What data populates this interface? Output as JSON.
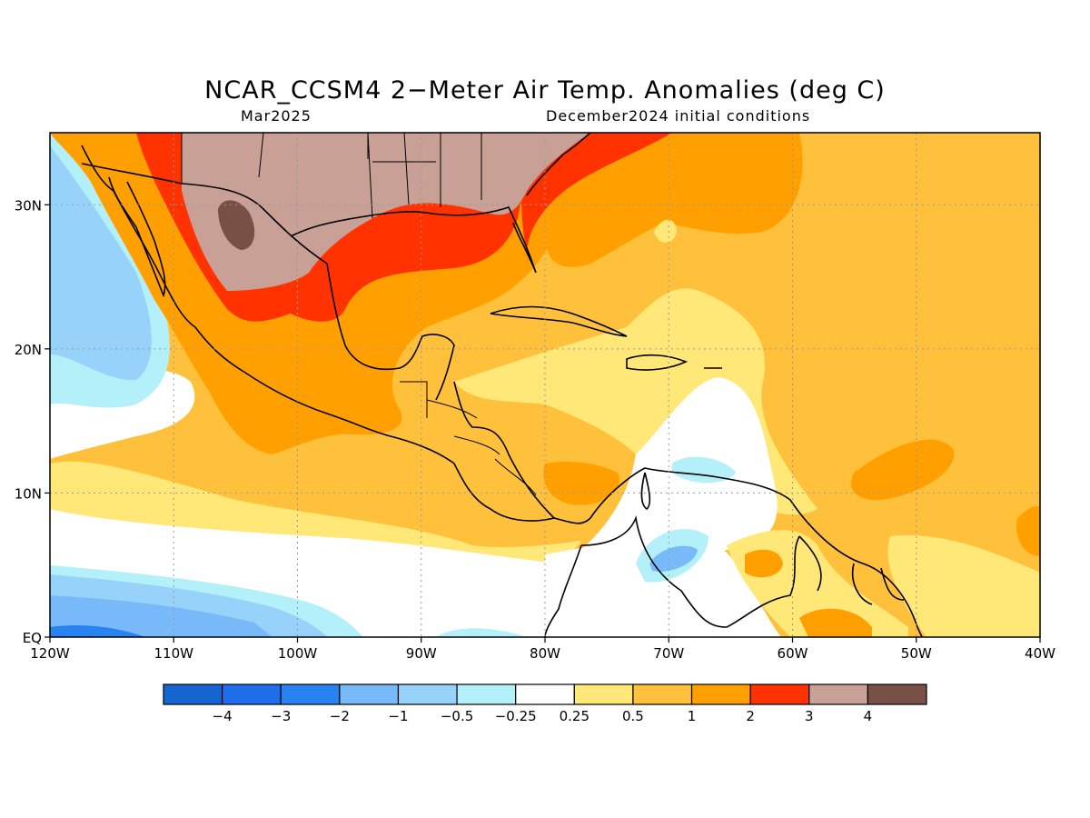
{
  "title": "NCAR_CCSM4 2−Meter Air Temp. Anomalies (deg C)",
  "subtitle_left": "Mar2025",
  "subtitle_right": "December2024 initial conditions",
  "map": {
    "lon_range": [
      -120,
      -40
    ],
    "lat_range": [
      0,
      35
    ],
    "lon_ticks": [
      {
        "v": -120,
        "label": "120W"
      },
      {
        "v": -110,
        "label": "110W"
      },
      {
        "v": -100,
        "label": "100W"
      },
      {
        "v": -90,
        "label": "90W"
      },
      {
        "v": -80,
        "label": "80W"
      },
      {
        "v": -70,
        "label": "70W"
      },
      {
        "v": -60,
        "label": "60W"
      },
      {
        "v": -50,
        "label": "50W"
      },
      {
        "v": -40,
        "label": "40W"
      }
    ],
    "lat_ticks": [
      {
        "v": 0,
        "label": "EQ"
      },
      {
        "v": 10,
        "label": "10N"
      },
      {
        "v": 20,
        "label": "20N"
      },
      {
        "v": 30,
        "label": "30N"
      }
    ],
    "grid": "dotted"
  },
  "colorbar": {
    "colors": [
      "#1464d2",
      "#1e6eeb",
      "#2882f0",
      "#78b9fa",
      "#96d2fa",
      "#b4f0fa",
      "#ffffff",
      "#ffe878",
      "#ffc03c",
      "#ffa000",
      "#ff3200",
      "#c8a096",
      "#785046"
    ],
    "labels": [
      "−4",
      "−3",
      "−2",
      "−1",
      "−0.5",
      "−0.25",
      "0.25",
      "0.5",
      "1",
      "2",
      "3",
      "4"
    ]
  }
}
